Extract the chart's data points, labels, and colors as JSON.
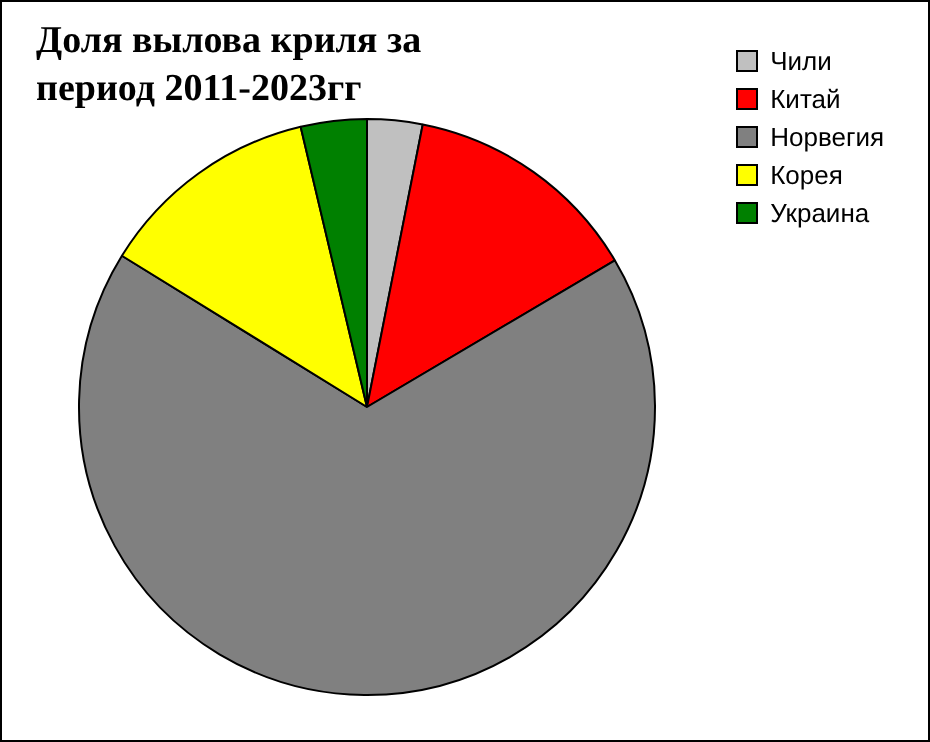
{
  "chart_data": {
    "type": "pie",
    "title": "Доля вылова криля за период 2011-2023гг",
    "categories": [
      "Чили",
      "Китай",
      "Норвегия",
      "Корея",
      "Украина"
    ],
    "values": [
      3.1,
      13.4,
      67.3,
      12.5,
      3.7
    ],
    "colors": [
      "#c0c0c0",
      "#ff0000",
      "#808080",
      "#ffff00",
      "#008000"
    ],
    "legend": "top right"
  }
}
